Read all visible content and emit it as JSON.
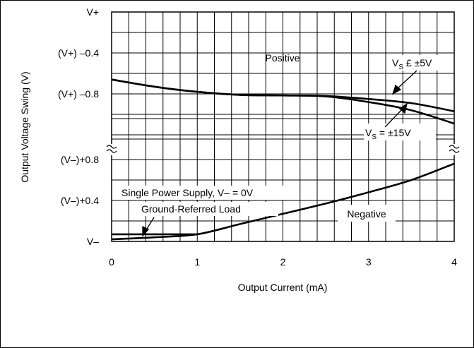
{
  "chart_data": {
    "type": "line",
    "xlabel": "Output Current (mA)",
    "ylabel": "Output Voltage Swing (V)",
    "xlim": [
      0,
      4
    ],
    "x_ticks": [
      "0",
      "1",
      "2",
      "3",
      "4"
    ],
    "y_ticks": [
      "V+",
      "(V+) –0.4",
      "(V+) –0.8",
      "(V–)+0.8",
      "(V–)+0.4",
      "V–"
    ],
    "grid": true,
    "axis_break": "between (V+) –1.2 and (V–)+1.2",
    "annotations": {
      "positive": "Positive",
      "negative": "Negative",
      "vs5_main": "V",
      "vs5_sub": "S",
      "vs5_rest": " £ ±5V",
      "vs15_main": "V",
      "vs15_sub": "S",
      "vs15_rest": " = ±15V",
      "supply_line1": "Single Power Supply, V– = 0V",
      "supply_line2": "Ground-Referred Load"
    },
    "series": [
      {
        "region": "positive",
        "unit": "V below V+",
        "x": [
          0,
          0.5,
          1,
          1.5,
          2,
          2.5,
          3,
          3.5,
          4
        ],
        "y": [
          -0.66,
          -0.73,
          -0.78,
          -0.81,
          -0.815,
          -0.82,
          -0.85,
          -0.89,
          -0.97
        ]
      },
      {
        "region": "positive",
        "unit": "V below V+",
        "x": [
          0,
          0.5,
          1,
          1.5,
          2,
          2.5,
          3,
          3.5,
          4
        ],
        "y": [
          -0.66,
          -0.73,
          -0.78,
          -0.81,
          -0.815,
          -0.825,
          -0.88,
          -0.96,
          -1.09
        ]
      },
      {
        "region": "negative",
        "unit": "V above V–",
        "x": [
          0,
          0.5,
          1,
          1.5,
          2,
          2.5,
          3,
          3.5,
          4
        ],
        "y": [
          0.02,
          0.04,
          0.07,
          0.17,
          0.27,
          0.37,
          0.48,
          0.6,
          0.76
        ]
      },
      {
        "region": "negative",
        "unit": "V above V–",
        "x": [
          0,
          0.5,
          1
        ],
        "y": [
          0.07,
          0.07,
          0.07
        ]
      }
    ]
  }
}
